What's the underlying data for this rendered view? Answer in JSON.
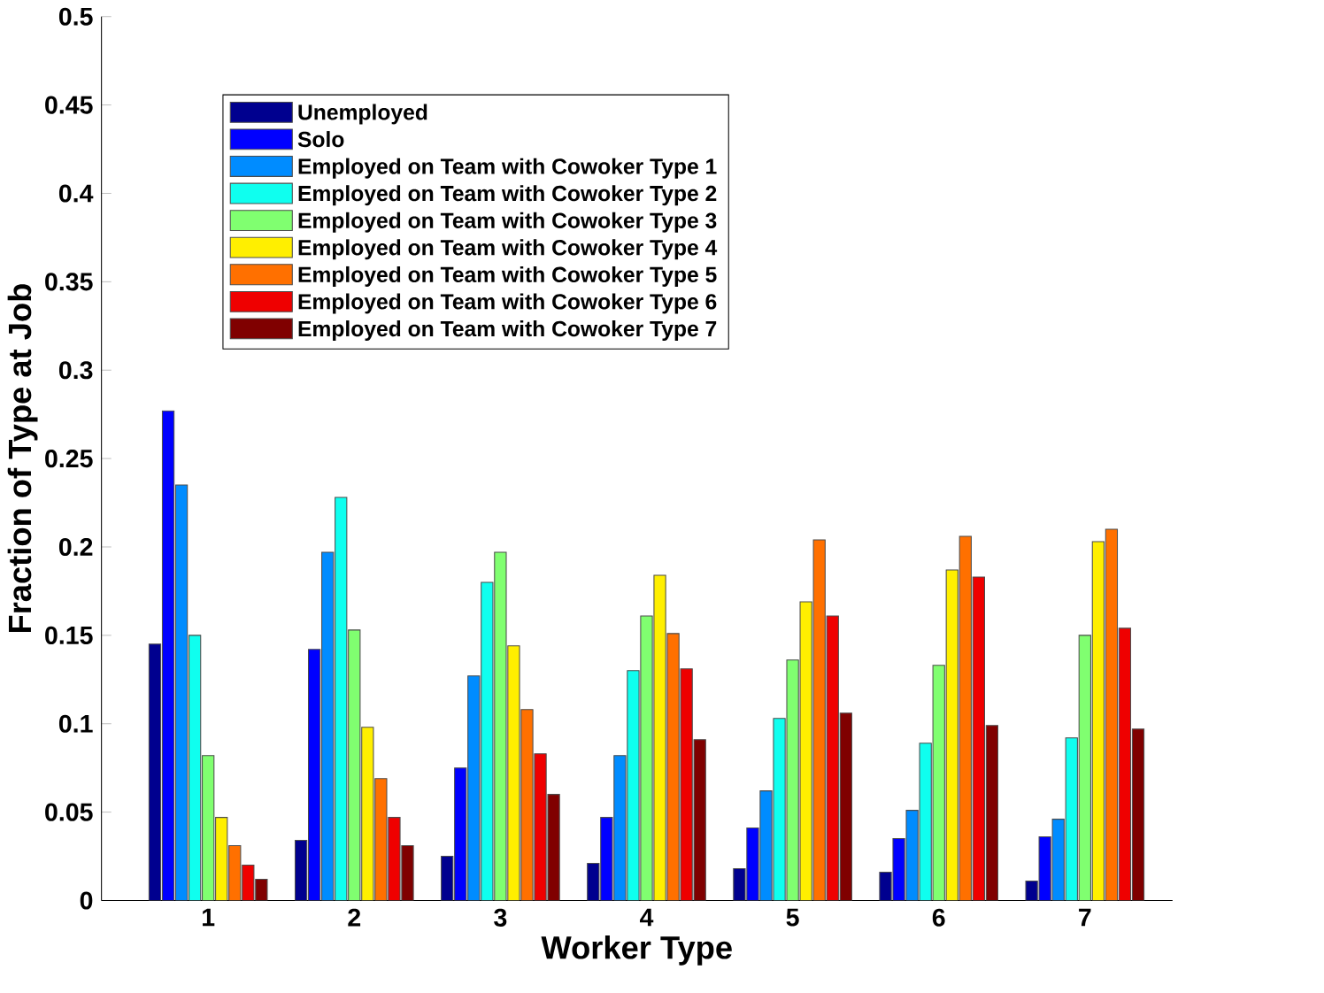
{
  "chart_data": {
    "type": "bar",
    "xlabel": "Worker Type",
    "ylabel": "Fraction of Type at Job",
    "categories": [
      "1",
      "2",
      "3",
      "4",
      "5",
      "6",
      "7"
    ],
    "series": [
      {
        "name": "Unemployed",
        "color": "#00008f",
        "values": [
          0.145,
          0.034,
          0.025,
          0.021,
          0.018,
          0.016,
          0.011
        ]
      },
      {
        "name": "Solo",
        "color": "#0000ff",
        "values": [
          0.277,
          0.142,
          0.075,
          0.047,
          0.041,
          0.035,
          0.036
        ]
      },
      {
        "name": "Employed on Team with Cowoker Type 1",
        "color": "#008cff",
        "values": [
          0.235,
          0.197,
          0.127,
          0.082,
          0.062,
          0.051,
          0.046
        ]
      },
      {
        "name": "Employed on Team with Cowoker Type 2",
        "color": "#0fffef",
        "values": [
          0.15,
          0.228,
          0.18,
          0.13,
          0.103,
          0.089,
          0.092
        ]
      },
      {
        "name": "Employed on Team with Cowoker Type 3",
        "color": "#80ff70",
        "values": [
          0.082,
          0.153,
          0.197,
          0.161,
          0.136,
          0.133,
          0.15
        ]
      },
      {
        "name": "Employed on Team with Cowoker Type 4",
        "color": "#ffef00",
        "values": [
          0.047,
          0.098,
          0.144,
          0.184,
          0.169,
          0.187,
          0.203
        ]
      },
      {
        "name": "Employed on Team with Cowoker Type 5",
        "color": "#ff7000",
        "values": [
          0.031,
          0.069,
          0.108,
          0.151,
          0.204,
          0.206,
          0.21
        ]
      },
      {
        "name": "Employed on Team with Cowoker Type 6",
        "color": "#ef0000",
        "values": [
          0.02,
          0.047,
          0.083,
          0.131,
          0.161,
          0.183,
          0.154
        ]
      },
      {
        "name": "Employed on Team with Cowoker Type 7",
        "color": "#800000",
        "values": [
          0.012,
          0.031,
          0.06,
          0.091,
          0.106,
          0.099,
          0.097
        ]
      }
    ],
    "ylim": [
      0,
      0.5
    ],
    "yticks": [
      0,
      0.05,
      0.1,
      0.15,
      0.2,
      0.25,
      0.3,
      0.35,
      0.4,
      0.45,
      0.5
    ],
    "legend": "top left",
    "grid": false
  }
}
